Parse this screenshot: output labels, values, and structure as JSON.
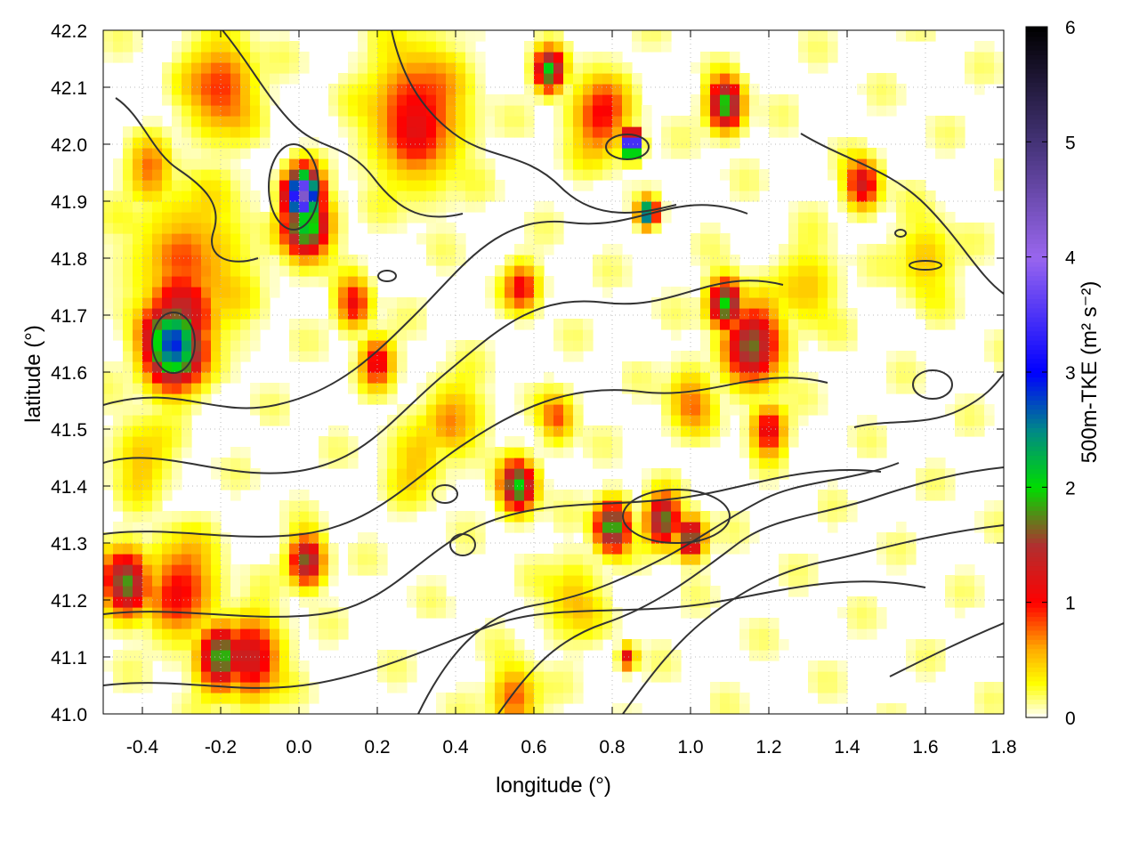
{
  "chart_data": {
    "type": "heatmap",
    "title": "",
    "xlabel": "longitude (°)",
    "ylabel": "latitude (°)",
    "colorbar_label": "500m-TKE (m² s⁻²)",
    "xlim": [
      -0.5,
      1.8
    ],
    "ylim": [
      41.0,
      42.2
    ],
    "x_ticks": [
      -0.4,
      -0.2,
      0.0,
      0.2,
      0.4,
      0.6,
      0.8,
      1.0,
      1.2,
      1.4,
      1.6,
      1.8
    ],
    "y_ticks": [
      41.0,
      41.1,
      41.2,
      41.3,
      41.4,
      41.5,
      41.6,
      41.7,
      41.8,
      41.9,
      42.0,
      42.1,
      42.2
    ],
    "colorbar_range": [
      0,
      6
    ],
    "colorbar_ticks": [
      0,
      1,
      2,
      3,
      4,
      5,
      6
    ],
    "grid": true,
    "colormap": [
      {
        "v": 0.0,
        "c": "#ffffff"
      },
      {
        "v": 0.3,
        "c": "#ffff00"
      },
      {
        "v": 0.6,
        "c": "#ffaa00"
      },
      {
        "v": 1.0,
        "c": "#ff0000"
      },
      {
        "v": 1.5,
        "c": "#b03030"
      },
      {
        "v": 2.0,
        "c": "#00dd00"
      },
      {
        "v": 2.5,
        "c": "#008888"
      },
      {
        "v": 3.0,
        "c": "#0000ff"
      },
      {
        "v": 4.0,
        "c": "#9966ee"
      },
      {
        "v": 5.0,
        "c": "#443377"
      },
      {
        "v": 6.0,
        "c": "#000000"
      }
    ],
    "hotspots": [
      {
        "lon": 0.01,
        "lat": 41.91,
        "v": 4.3,
        "r": 0.03
      },
      {
        "lon": 0.02,
        "lat": 41.86,
        "v": 2.2,
        "r": 0.04
      },
      {
        "lon": -0.32,
        "lat": 41.65,
        "v": 2.9,
        "r": 0.05
      },
      {
        "lon": -0.3,
        "lat": 41.7,
        "v": 1.5,
        "r": 0.06
      },
      {
        "lon": -0.28,
        "lat": 41.78,
        "v": 0.7,
        "r": 0.1
      },
      {
        "lon": 0.85,
        "lat": 42.0,
        "v": 5.0,
        "r": 0.015
      },
      {
        "lon": 0.89,
        "lat": 41.88,
        "v": 2.8,
        "r": 0.015
      },
      {
        "lon": 1.09,
        "lat": 42.07,
        "v": 2.0,
        "r": 0.03
      },
      {
        "lon": 0.64,
        "lat": 42.13,
        "v": 2.0,
        "r": 0.025
      },
      {
        "lon": 0.56,
        "lat": 41.4,
        "v": 2.0,
        "r": 0.03
      },
      {
        "lon": 1.09,
        "lat": 41.72,
        "v": 2.0,
        "r": 0.03
      },
      {
        "lon": 1.16,
        "lat": 41.65,
        "v": 1.6,
        "r": 0.05
      },
      {
        "lon": 0.8,
        "lat": 41.33,
        "v": 2.0,
        "r": 0.03
      },
      {
        "lon": 0.93,
        "lat": 41.34,
        "v": 1.8,
        "r": 0.03
      },
      {
        "lon": 1.0,
        "lat": 41.31,
        "v": 1.8,
        "r": 0.025
      },
      {
        "lon": -0.44,
        "lat": 41.23,
        "v": 1.8,
        "r": 0.04
      },
      {
        "lon": -0.3,
        "lat": 41.22,
        "v": 1.0,
        "r": 0.06
      },
      {
        "lon": -0.2,
        "lat": 41.1,
        "v": 1.8,
        "r": 0.04
      },
      {
        "lon": -0.12,
        "lat": 41.1,
        "v": 1.3,
        "r": 0.05
      },
      {
        "lon": 0.02,
        "lat": 41.27,
        "v": 1.7,
        "r": 0.03
      },
      {
        "lon": 1.44,
        "lat": 41.93,
        "v": 1.3,
        "r": 0.03
      },
      {
        "lon": 1.2,
        "lat": 41.5,
        "v": 1.2,
        "r": 0.03
      },
      {
        "lon": 0.3,
        "lat": 42.05,
        "v": 1.1,
        "r": 0.08
      },
      {
        "lon": 0.2,
        "lat": 41.62,
        "v": 1.1,
        "r": 0.03
      },
      {
        "lon": 0.14,
        "lat": 41.72,
        "v": 1.1,
        "r": 0.03
      },
      {
        "lon": -0.2,
        "lat": 42.1,
        "v": 0.9,
        "r": 0.06
      },
      {
        "lon": 0.84,
        "lat": 41.1,
        "v": 1.2,
        "r": 0.015
      },
      {
        "lon": 0.57,
        "lat": 41.75,
        "v": 1.0,
        "r": 0.03
      },
      {
        "lon": 0.77,
        "lat": 42.05,
        "v": 1.0,
        "r": 0.05
      },
      {
        "lon": 0.55,
        "lat": 41.03,
        "v": 0.8,
        "r": 0.04
      },
      {
        "lon": 0.4,
        "lat": 41.52,
        "v": 0.6,
        "r": 0.05
      },
      {
        "lon": 0.66,
        "lat": 41.52,
        "v": 0.8,
        "r": 0.03
      },
      {
        "lon": 1.0,
        "lat": 41.55,
        "v": 0.7,
        "r": 0.04
      },
      {
        "lon": 1.6,
        "lat": 41.8,
        "v": 0.5,
        "r": 0.05
      },
      {
        "lon": -0.38,
        "lat": 41.95,
        "v": 0.7,
        "r": 0.04
      },
      {
        "lon": 0.3,
        "lat": 41.45,
        "v": 0.5,
        "r": 0.05
      },
      {
        "lon": 1.3,
        "lat": 41.75,
        "v": 0.5,
        "r": 0.05
      },
      {
        "lon": -0.4,
        "lat": 41.45,
        "v": 0.5,
        "r": 0.05
      },
      {
        "lon": 0.7,
        "lat": 41.2,
        "v": 0.5,
        "r": 0.05
      }
    ]
  }
}
